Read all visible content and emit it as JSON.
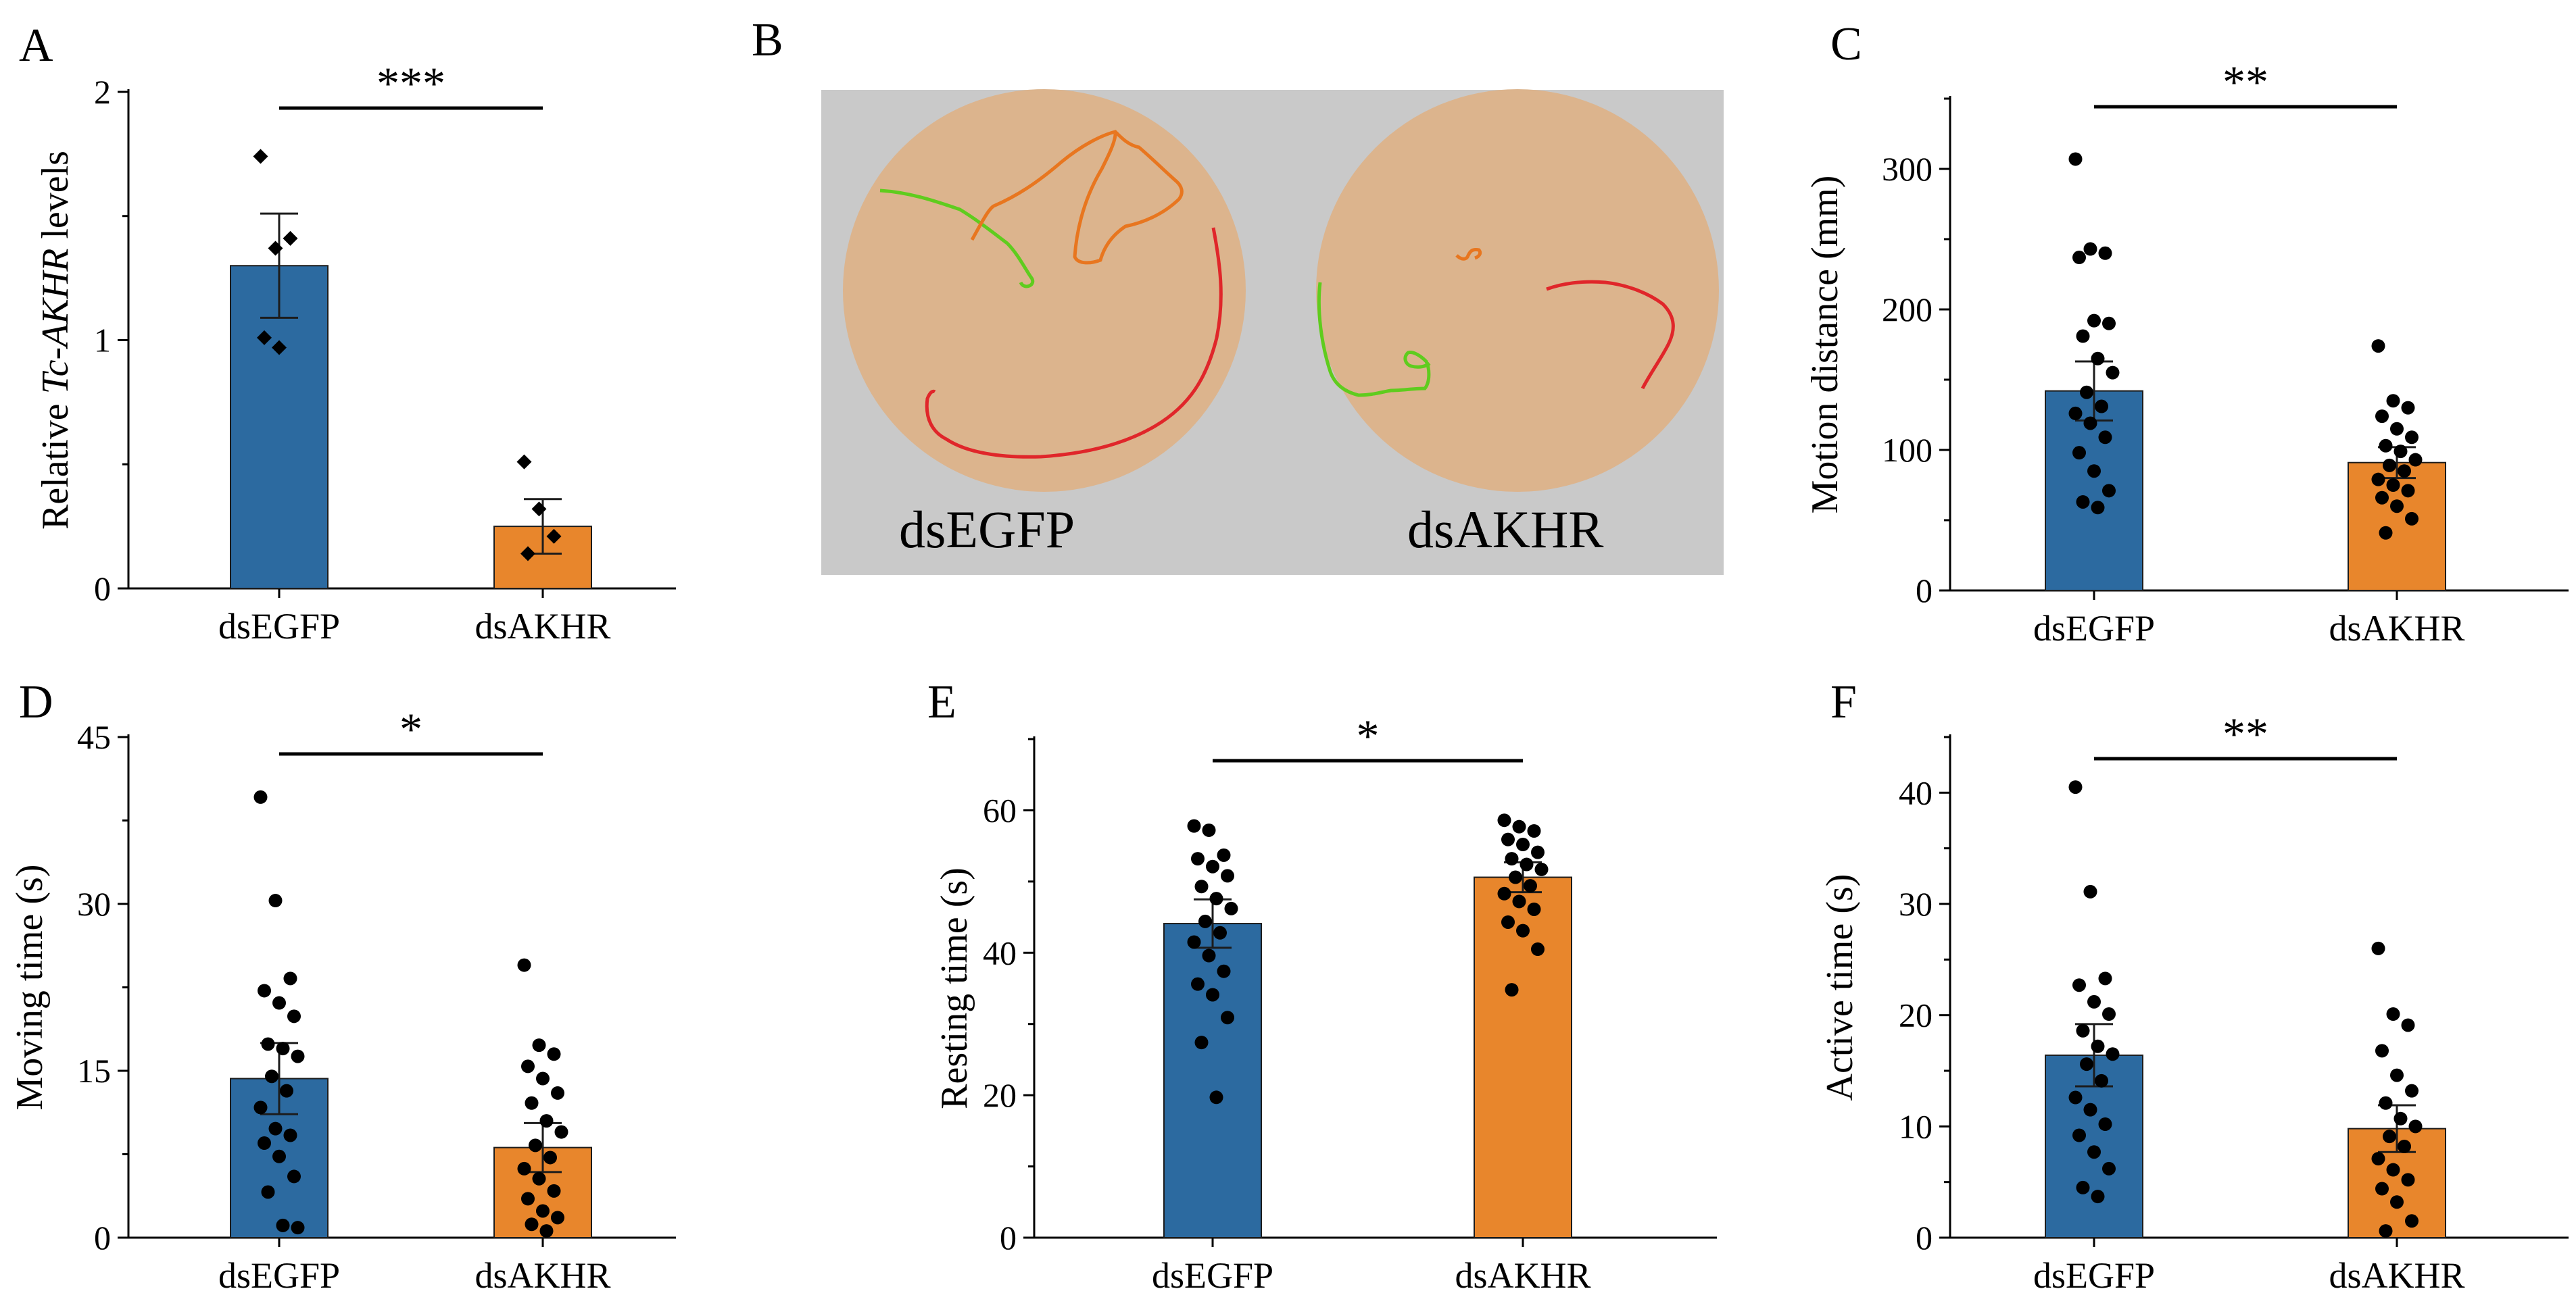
{
  "figure": {
    "colors": {
      "dsEGFP": "#2c6aa0",
      "dsAKHR": "#e8862c",
      "arena_bg": "#c9c9c9",
      "arena_dish": "#dcb48d",
      "track_green": "#5fcc1e",
      "track_orange": "#e8761f",
      "track_red": "#e0262a"
    },
    "panel_B": {
      "letter": "B",
      "labels": [
        "dsEGFP",
        "dsAKHR"
      ]
    }
  },
  "chart_data": [
    {
      "id": "A",
      "type": "bar",
      "letter": "A",
      "title": "",
      "ylabel_prefix": "Relative ",
      "ylabel_italic": "Tc-AKHR",
      "ylabel_suffix": "  levels",
      "categories": [
        "dsEGFP",
        "dsAKHR"
      ],
      "values": [
        1.3,
        0.25
      ],
      "errors": [
        0.21,
        0.11
      ],
      "points": [
        [
          1.74,
          1.37,
          1.41,
          1.01,
          0.97
        ],
        [
          0.51,
          0.32,
          0.21,
          0.14
        ]
      ],
      "marker": "diamond",
      "ylim": [
        0,
        2
      ],
      "yticks": [
        0,
        1,
        2
      ],
      "significance": "***"
    },
    {
      "id": "C",
      "type": "bar",
      "letter": "C",
      "title": "",
      "ylabel": "Motion distance (mm)",
      "categories": [
        "dsEGFP",
        "dsAKHR"
      ],
      "values": [
        142,
        91
      ],
      "errors": [
        21,
        11
      ],
      "points": [
        [
          307,
          243,
          240,
          237,
          192,
          190,
          181,
          165,
          155,
          141,
          131,
          126,
          119,
          109,
          98,
          85,
          71,
          63,
          59
        ],
        [
          174,
          135,
          130,
          124,
          115,
          109,
          103,
          99,
          93,
          89,
          85,
          79,
          75,
          71,
          66,
          60,
          51,
          41
        ]
      ],
      "marker": "circle",
      "ylim": [
        0,
        350
      ],
      "yticks": [
        0,
        100,
        200,
        300
      ],
      "significance": "**"
    },
    {
      "id": "D",
      "type": "bar",
      "letter": "D",
      "title": "",
      "ylabel": "Moving time (s)",
      "categories": [
        "dsEGFP",
        "dsAKHR"
      ],
      "values": [
        14.3,
        8.1
      ],
      "errors": [
        3.2,
        2.2
      ],
      "points": [
        [
          39.6,
          30.3,
          23.3,
          22.2,
          21.1,
          19.9,
          17.4,
          17.0,
          16.3,
          14.5,
          13.2,
          11.7,
          9.8,
          9.2,
          8.5,
          7.3,
          5.5,
          4.1,
          1.1,
          0.9
        ],
        [
          24.5,
          17.3,
          16.5,
          15.4,
          14.3,
          13.0,
          12.1,
          10.5,
          9.5,
          8.3,
          7.2,
          6.2,
          5.3,
          4.2,
          3.5,
          2.4,
          1.8,
          1.2,
          0.6
        ]
      ],
      "marker": "circle",
      "ylim": [
        0,
        45
      ],
      "yticks": [
        0,
        15,
        30,
        45
      ],
      "significance": "*"
    },
    {
      "id": "E",
      "type": "bar",
      "letter": "E",
      "title": "",
      "ylabel": "Resting time (s)",
      "categories": [
        "dsEGFP",
        "dsAKHR"
      ],
      "values": [
        44.1,
        50.6
      ],
      "errors": [
        3.4,
        2.1
      ],
      "points": [
        [
          57.8,
          57.2,
          53.7,
          53.2,
          52.1,
          50.8,
          49.3,
          47.6,
          46.2,
          44.4,
          42.8,
          41.5,
          39.6,
          37.4,
          35.6,
          34.1,
          30.9,
          27.4,
          19.7
        ],
        [
          58.6,
          57.7,
          57.1,
          55.9,
          55.2,
          54.1,
          53.2,
          52.4,
          51.7,
          50.6,
          49.4,
          48.3,
          47.2,
          46.1,
          44.3,
          43.1,
          40.5,
          34.8
        ]
      ],
      "marker": "circle",
      "ylim": [
        0,
        70
      ],
      "yticks": [
        0,
        20,
        40,
        60
      ],
      "significance": "*"
    },
    {
      "id": "F",
      "type": "bar",
      "letter": "F",
      "title": "",
      "ylabel": "Active time (s)",
      "categories": [
        "dsEGFP",
        "dsAKHR"
      ],
      "values": [
        16.4,
        9.8
      ],
      "errors": [
        2.8,
        2.1
      ],
      "points": [
        [
          40.5,
          31.1,
          23.3,
          22.7,
          21.2,
          20.1,
          18.6,
          17.2,
          16.5,
          15.6,
          14.1,
          12.6,
          11.5,
          10.2,
          9.2,
          7.7,
          6.2,
          4.5,
          3.7
        ],
        [
          26.0,
          20.1,
          19.1,
          16.8,
          14.6,
          13.2,
          12.1,
          10.7,
          10.0,
          9.1,
          8.2,
          7.1,
          6.1,
          5.2,
          4.4,
          3.2,
          1.5,
          0.6
        ]
      ],
      "marker": "circle",
      "ylim": [
        0,
        45
      ],
      "yticks": [
        0,
        10,
        20,
        30,
        40
      ],
      "significance": "**"
    }
  ]
}
